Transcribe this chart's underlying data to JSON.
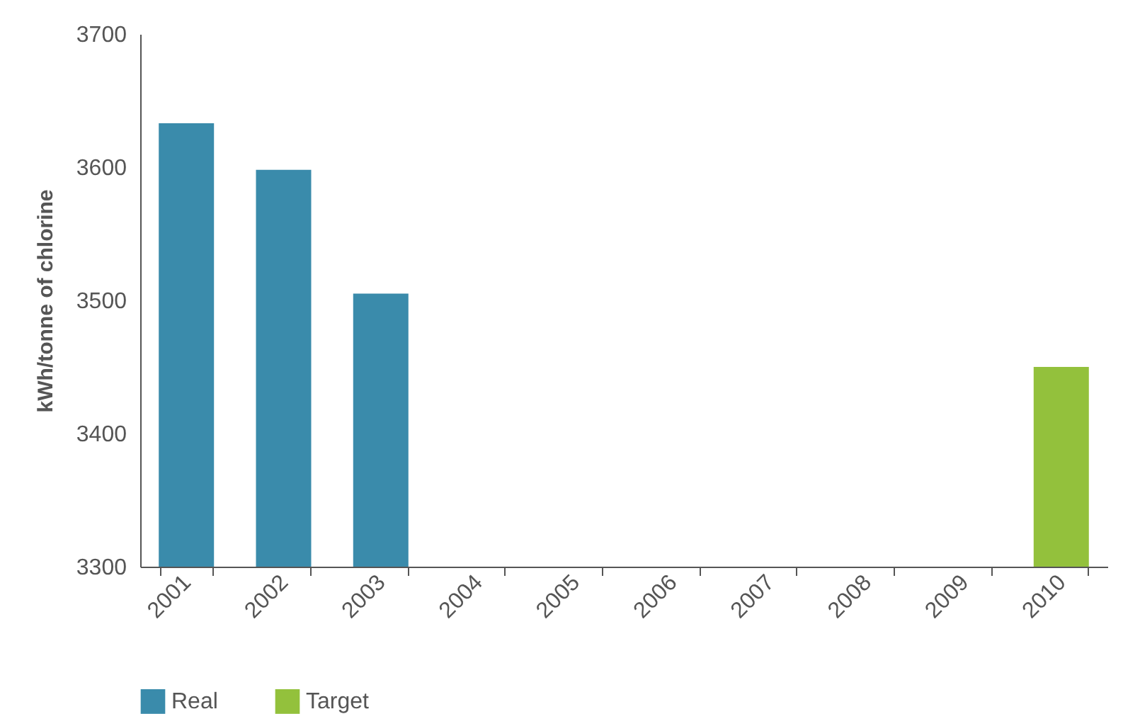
{
  "chart_data": {
    "type": "bar",
    "ylabel": "kWh/tonne of chlorine",
    "categories": [
      "2001",
      "2002",
      "2003",
      "2004",
      "2005",
      "2006",
      "2007",
      "2008",
      "2009",
      "2010"
    ],
    "series": [
      {
        "name": "Real",
        "color": "#3a8bab",
        "values": [
          3633,
          3598,
          3505,
          null,
          null,
          null,
          null,
          null,
          null,
          null
        ]
      },
      {
        "name": "Target",
        "color": "#93c13c",
        "values": [
          null,
          null,
          null,
          null,
          null,
          null,
          null,
          null,
          null,
          3450
        ]
      }
    ],
    "ylim": [
      3300,
      3700
    ],
    "yticks": [
      3300,
      3400,
      3500,
      3600,
      3700
    ],
    "grid": false,
    "legend": "bottom left"
  }
}
